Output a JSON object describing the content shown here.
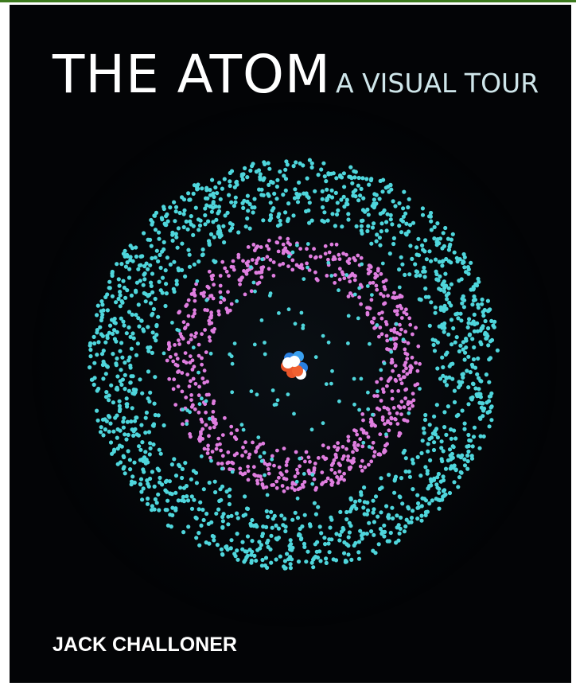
{
  "cover": {
    "title": "THE ATOM",
    "subtitle": "A VISUAL TOUR",
    "author": "JACK CHALLONER"
  }
}
